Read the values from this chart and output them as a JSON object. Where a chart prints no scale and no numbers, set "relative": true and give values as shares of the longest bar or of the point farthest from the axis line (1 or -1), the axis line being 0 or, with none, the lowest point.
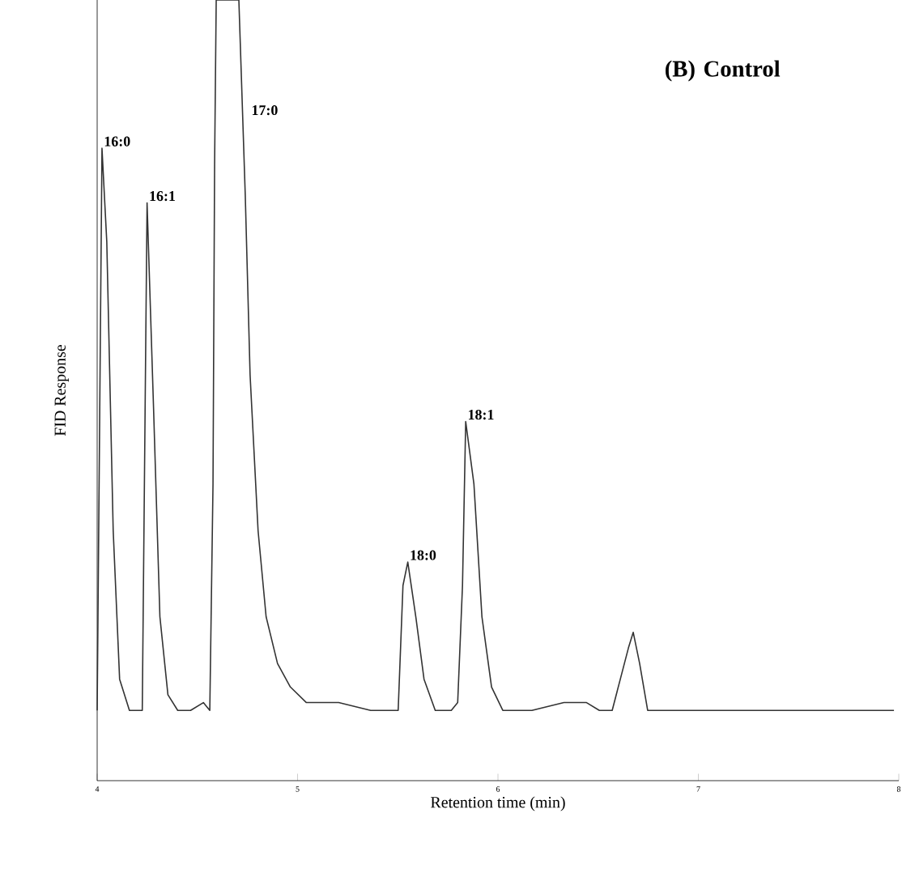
{
  "chart_data": {
    "type": "line",
    "title": "(B) Control",
    "xlabel": "Retention time (min)",
    "ylabel": "FID Response",
    "relative": true,
    "color": "#333333",
    "xlim": [
      4,
      8
    ],
    "xticks": [
      4,
      5,
      6,
      7,
      8
    ],
    "x": [
      4.0,
      4.024,
      4.048,
      4.08,
      4.112,
      4.161,
      4.193,
      4.225,
      4.249,
      4.281,
      4.313,
      4.353,
      4.402,
      4.466,
      4.53,
      4.562,
      4.578,
      4.586,
      4.594,
      4.707,
      4.739,
      4.763,
      4.803,
      4.843,
      4.9,
      4.964,
      5.044,
      5.205,
      5.365,
      5.502,
      5.526,
      5.55,
      5.59,
      5.631,
      5.687,
      5.767,
      5.799,
      5.823,
      5.839,
      5.88,
      5.92,
      5.968,
      6.024,
      6.169,
      6.329,
      6.442,
      6.506,
      6.57,
      6.651,
      6.675,
      6.707,
      6.747,
      6.892,
      7.373,
      7.976
    ],
    "values": [
      0.09,
      0.81,
      0.69,
      0.32,
      0.13,
      0.09,
      0.09,
      0.09,
      0.74,
      0.48,
      0.21,
      0.11,
      0.09,
      0.09,
      0.1,
      0.09,
      0.38,
      0.79,
      1,
      1,
      0.75,
      0.52,
      0.32,
      0.21,
      0.15,
      0.12,
      0.1,
      0.1,
      0.09,
      0.09,
      0.25,
      0.28,
      0.21,
      0.13,
      0.09,
      0.09,
      0.1,
      0.25,
      0.46,
      0.38,
      0.21,
      0.12,
      0.09,
      0.09,
      0.1,
      0.1,
      0.09,
      0.09,
      0.17,
      0.19,
      0.15,
      0.09,
      0.09,
      0.09,
      0.09
    ],
    "annotations": [
      {
        "text": "16:0",
        "x": 4.024,
        "y": 0.81
      },
      {
        "text": "16:1",
        "x": 4.249,
        "y": 0.74
      },
      {
        "text": "17:0",
        "x": 4.76,
        "y": 0.85
      },
      {
        "text": "18:0",
        "x": 5.55,
        "y": 0.28
      },
      {
        "text": "18:1",
        "x": 5.839,
        "y": 0.46
      }
    ]
  }
}
